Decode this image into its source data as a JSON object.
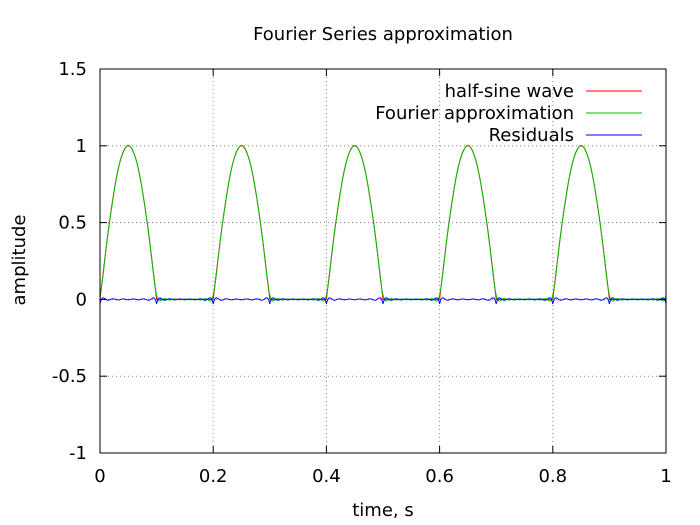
{
  "chart_data": {
    "type": "line",
    "title": "Fourier Series approximation",
    "xlabel": "time, s",
    "ylabel": "amplitude",
    "xlim": [
      0,
      1
    ],
    "ylim": [
      -1,
      1.5
    ],
    "x_ticks": [
      0,
      0.2,
      0.4,
      0.6,
      0.8,
      1
    ],
    "x_tick_labels": [
      "0",
      "0.2",
      "0.4",
      "0.6",
      "0.8",
      "1"
    ],
    "y_ticks": [
      -1,
      -0.5,
      0,
      0.5,
      1,
      1.5
    ],
    "y_tick_labels": [
      "-1",
      "-0.5",
      "0",
      "0.5",
      "1",
      "1.5"
    ],
    "grid": true,
    "legend_position": "top-right",
    "period": 0.2,
    "pulse_width": 0.1,
    "harmonics": 10,
    "series": [
      {
        "name": "half-sine wave",
        "color": "#ff0000",
        "kind": "half-sine"
      },
      {
        "name": "Fourier approximation",
        "color": "#00c000",
        "kind": "fourier"
      },
      {
        "name": "Residuals",
        "color": "#0000ff",
        "kind": "residual"
      }
    ]
  }
}
